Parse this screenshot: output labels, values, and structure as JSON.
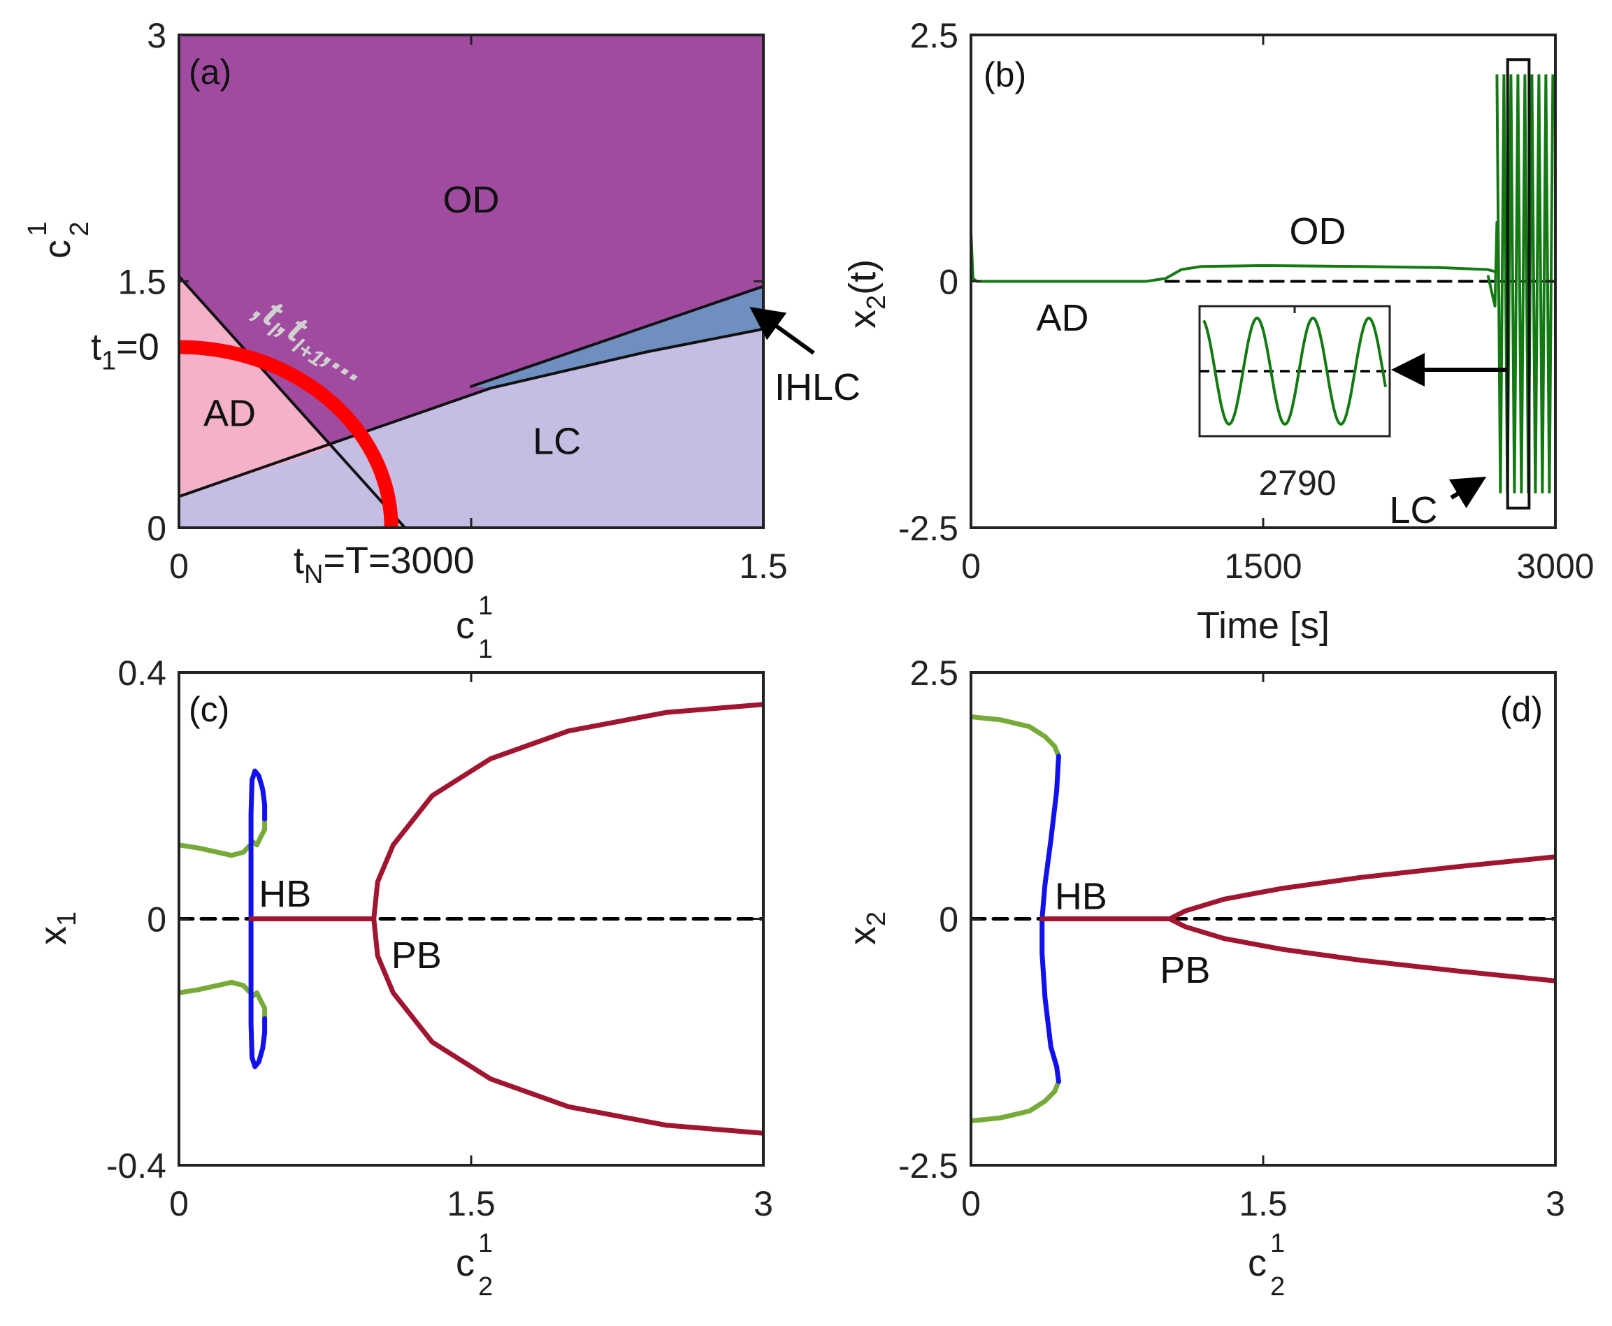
{
  "colors": {
    "od": "#a04b9f",
    "ad": "#f5b1c9",
    "lc": "#c5bde3",
    "ihlc": "#6e8fbf",
    "path": "#ff0000",
    "time_series": "#137a13",
    "branch_green": "#78aa3a",
    "branch_blue": "#1111ee",
    "branch_red": "#a01530",
    "zero_line": "#000000",
    "tokens_text": "#d0d0d0"
  },
  "chart_data": [
    {
      "id": "a",
      "type": "area",
      "panel_label": "(a)",
      "xlabel": "c",
      "xlabel_sup": "1",
      "xlabel_sub": "1",
      "ylabel": "c",
      "ylabel_sup": "1",
      "ylabel_sub": "2",
      "xlim": [
        0,
        1.5
      ],
      "ylim": [
        0,
        3
      ],
      "xticks": [
        "0",
        "1.5"
      ],
      "xtick_values": [
        0,
        1.5
      ],
      "xtick_minor": [
        0.75
      ],
      "yticks": [
        "0",
        "1.5",
        "3"
      ],
      "ytick_values": [
        0,
        1.5,
        3
      ],
      "regions": [
        {
          "name": "OD",
          "label_at": [
            0.75,
            1.92
          ]
        },
        {
          "name": "AD",
          "label_at": [
            0.13,
            0.62
          ]
        },
        {
          "name": "LC",
          "label_at": [
            0.97,
            0.45
          ]
        },
        {
          "name": "IHLC"
        }
      ],
      "boundaries": {
        "AD_upper": {
          "x": [
            0,
            0.58
          ],
          "y": [
            1.53,
            0
          ]
        },
        "LC_upper": [
          [
            0,
            0.19
          ],
          [
            0.4,
            0.52
          ],
          [
            0.8,
            0.85
          ],
          [
            1.2,
            1.07
          ],
          [
            1.5,
            1.21
          ]
        ],
        "IHLC_upper": [
          [
            0.75,
            0.86
          ],
          [
            1.5,
            1.47
          ]
        ]
      },
      "path_label_start": "t",
      "path_label_start_sub": "1",
      "path_label_start_tail": "=0",
      "path_label_end": "t",
      "path_label_end_sub": "N",
      "path_label_end_tail": "=T=3000",
      "path_tokens": [
        {
          "t": ",t"
        },
        {
          "s": "l"
        },
        {
          "t": ",t"
        },
        {
          "s": "l+1"
        },
        {
          "t": ",..."
        }
      ],
      "path": {
        "center": [
          0,
          0
        ],
        "radius_x": 0.545,
        "radius_y": 1.1
      },
      "annotation": "IHLC"
    },
    {
      "id": "b",
      "type": "line",
      "panel_label": "(b)",
      "xlabel": "Time [s]",
      "ylabel": "x",
      "ylabel_sub": "2",
      "ylabel_tail": "(t)",
      "xlim": [
        0,
        3000
      ],
      "ylim": [
        -2.5,
        2.5
      ],
      "xticks": [
        "0",
        "1500",
        "3000"
      ],
      "xtick_values": [
        0,
        1500,
        3000
      ],
      "yticks": [
        "-2.5",
        "0",
        "2.5"
      ],
      "ytick_values": [
        -2.5,
        0,
        2.5
      ],
      "series": [
        {
          "name": "x2",
          "x": [
            0,
            10,
            30,
            200,
            900,
            1000,
            1080,
            1180,
            1500,
            2000,
            2400,
            2650,
            2690
          ],
          "y": [
            0.5,
            0.03,
            0.0,
            0.0,
            0.0,
            0.03,
            0.12,
            0.15,
            0.16,
            0.15,
            0.14,
            0.12,
            0.1
          ]
        }
      ],
      "oscillation": {
        "t_start": 2700,
        "t_end": 3000,
        "ymin": -2.15,
        "ymax": 2.1
      },
      "zero_line": {
        "x": [
          1000,
          3000
        ],
        "y": 0
      },
      "zoom_box": {
        "x": [
          2755,
          2865
        ],
        "y": [
          -2.3,
          2.25
        ]
      },
      "inset_tick": "2790",
      "regions": [
        {
          "name": "AD",
          "label_at": [
            470,
            -0.5
          ]
        },
        {
          "name": "OD",
          "label_at": [
            1780,
            0.38
          ]
        },
        {
          "name": "LC"
        }
      ]
    },
    {
      "id": "c",
      "type": "line",
      "panel_label": "(c)",
      "xlabel": "c",
      "xlabel_sup": "1",
      "xlabel_sub": "2",
      "ylabel": "x",
      "ylabel_sub": "1",
      "xlim": [
        0,
        3
      ],
      "ylim": [
        -0.4,
        0.4
      ],
      "xticks": [
        "0",
        "1.5",
        "3"
      ],
      "xtick_values": [
        0,
        1.5,
        3
      ],
      "yticks": [
        "-0.4",
        "0",
        "0.4"
      ],
      "ytick_values": [
        -0.4,
        0,
        0.4
      ],
      "annotations": [
        {
          "text": "HB",
          "at": [
            0.41,
            0.02
          ]
        },
        {
          "text": "PB",
          "at": [
            1.09,
            -0.08
          ]
        }
      ],
      "series": [
        {
          "name": "green-upper",
          "color_key": "branch_green",
          "x": [
            0,
            0.1,
            0.2,
            0.27,
            0.33,
            0.36
          ],
          "y": [
            0.12,
            0.115,
            0.108,
            0.103,
            0.108,
            0.118
          ]
        },
        {
          "name": "green-lower",
          "color_key": "branch_green",
          "x": [
            0,
            0.1,
            0.2,
            0.27,
            0.33,
            0.36
          ],
          "y": [
            -0.12,
            -0.115,
            -0.108,
            -0.103,
            -0.108,
            -0.118
          ]
        },
        {
          "name": "green-hook-upper",
          "color_key": "branch_green",
          "x": [
            0.37,
            0.38,
            0.4,
            0.42,
            0.44,
            0.44
          ],
          "y": [
            0.12,
            0.125,
            0.12,
            0.133,
            0.145,
            0.162
          ]
        },
        {
          "name": "green-hook-lower",
          "color_key": "branch_green",
          "x": [
            0.37,
            0.38,
            0.4,
            0.42,
            0.44,
            0.44
          ],
          "y": [
            -0.12,
            -0.125,
            -0.12,
            -0.133,
            -0.145,
            -0.162
          ]
        },
        {
          "name": "blue-upper",
          "color_key": "branch_blue",
          "x": [
            0.44,
            0.44,
            0.43,
            0.41,
            0.39,
            0.375,
            0.37,
            0.37,
            0.37
          ],
          "y": [
            0.162,
            0.185,
            0.21,
            0.232,
            0.24,
            0.225,
            0.17,
            0.08,
            0
          ]
        },
        {
          "name": "blue-lower",
          "color_key": "branch_blue",
          "x": [
            0.44,
            0.44,
            0.43,
            0.41,
            0.39,
            0.375,
            0.37,
            0.37,
            0.37
          ],
          "y": [
            -0.162,
            -0.185,
            -0.21,
            -0.232,
            -0.24,
            -0.225,
            -0.17,
            -0.08,
            0
          ]
        },
        {
          "name": "red-flat",
          "color_key": "branch_red",
          "x": [
            0.37,
            1.0
          ],
          "y": [
            0,
            0
          ]
        },
        {
          "name": "red-upper",
          "color_key": "branch_red",
          "x": [
            1.0,
            1.02,
            1.1,
            1.3,
            1.6,
            2.0,
            2.5,
            3.0
          ],
          "y": [
            0,
            0.06,
            0.12,
            0.2,
            0.26,
            0.305,
            0.335,
            0.348
          ]
        },
        {
          "name": "red-lower",
          "color_key": "branch_red",
          "x": [
            1.0,
            1.02,
            1.1,
            1.3,
            1.6,
            2.0,
            2.5,
            3.0
          ],
          "y": [
            0,
            -0.06,
            -0.12,
            -0.2,
            -0.26,
            -0.305,
            -0.335,
            -0.348
          ]
        }
      ],
      "zero_line": {
        "x": [
          0,
          3
        ],
        "y": 0
      }
    },
    {
      "id": "d",
      "type": "line",
      "panel_label": "(d)",
      "xlabel": "c",
      "xlabel_sup": "1",
      "xlabel_sub": "2",
      "ylabel": "x",
      "ylabel_sub": "2",
      "xlim": [
        0,
        3
      ],
      "ylim": [
        -2.5,
        2.5
      ],
      "xticks": [
        "0",
        "1.5",
        "3"
      ],
      "xtick_values": [
        0,
        1.5,
        3
      ],
      "yticks": [
        "-2.5",
        "0",
        "2.5"
      ],
      "ytick_values": [
        -2.5,
        0,
        2.5
      ],
      "annotations": [
        {
          "text": "HB",
          "at": [
            0.43,
            0.1
          ]
        },
        {
          "text": "PB",
          "at": [
            0.97,
            -0.65
          ]
        }
      ],
      "series": [
        {
          "name": "green-upper",
          "color_key": "branch_green",
          "x": [
            0,
            0.15,
            0.3,
            0.38,
            0.43,
            0.45
          ],
          "y": [
            2.05,
            2.02,
            1.95,
            1.85,
            1.75,
            1.65
          ]
        },
        {
          "name": "green-lower",
          "color_key": "branch_green",
          "x": [
            0,
            0.15,
            0.3,
            0.38,
            0.43,
            0.45
          ],
          "y": [
            -2.05,
            -2.02,
            -1.95,
            -1.85,
            -1.75,
            -1.65
          ]
        },
        {
          "name": "blue",
          "color_key": "branch_blue",
          "x": [
            0.45,
            0.44,
            0.41,
            0.38,
            0.365,
            0.365,
            0.38,
            0.41,
            0.44,
            0.45
          ],
          "y": [
            1.65,
            1.3,
            0.8,
            0.35,
            0,
            -0.35,
            -0.8,
            -1.3,
            -1.5,
            -1.65
          ]
        },
        {
          "name": "red-flat",
          "color_key": "branch_red",
          "x": [
            0.365,
            1.02
          ],
          "y": [
            0,
            0
          ]
        },
        {
          "name": "red-upper",
          "color_key": "branch_red",
          "x": [
            1.02,
            1.1,
            1.3,
            1.6,
            2.0,
            2.5,
            3.0
          ],
          "y": [
            0,
            0.08,
            0.2,
            0.31,
            0.42,
            0.53,
            0.63
          ]
        },
        {
          "name": "red-lower",
          "color_key": "branch_red",
          "x": [
            1.02,
            1.1,
            1.3,
            1.6,
            2.0,
            2.5,
            3.0
          ],
          "y": [
            0,
            -0.08,
            -0.2,
            -0.31,
            -0.42,
            -0.53,
            -0.63
          ]
        }
      ],
      "zero_line": {
        "x": [
          0,
          3
        ],
        "y": 0
      }
    }
  ]
}
